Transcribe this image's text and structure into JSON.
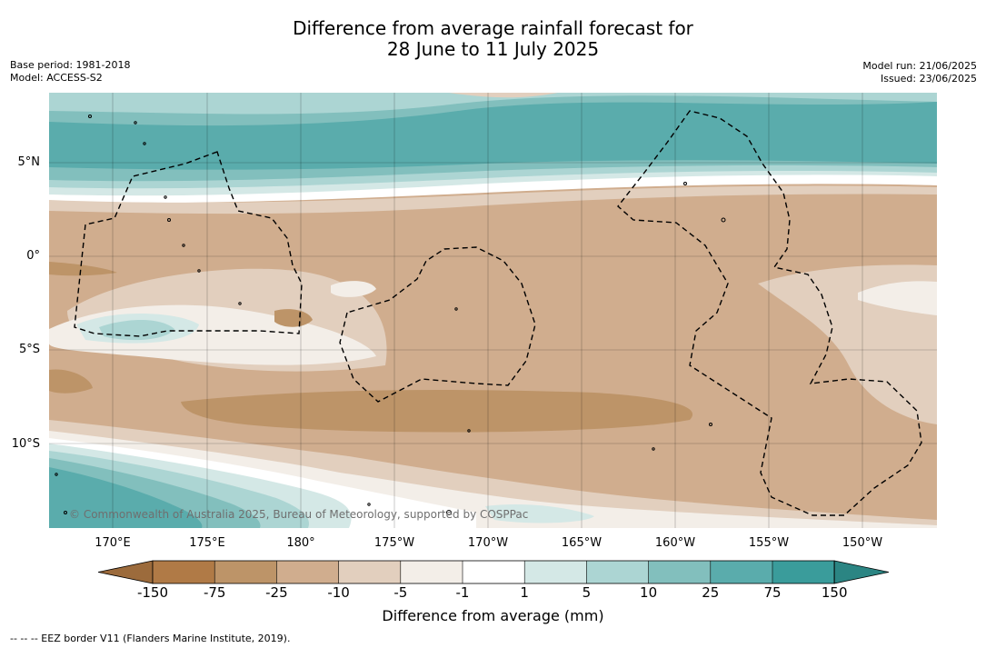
{
  "title": {
    "line1": "Difference from average rainfall forecast for",
    "line2": "28 June to 11 July 2025"
  },
  "meta": {
    "base_period": "Base period: 1981-2018",
    "model": "Model: ACCESS-S2",
    "model_run": "Model run: 21/06/2025",
    "issued": "Issued: 23/06/2025"
  },
  "map": {
    "lat_labels": [
      "5°N",
      "0°",
      "5°S",
      "10°S"
    ],
    "lon_labels": [
      "170°E",
      "175°E",
      "180°",
      "175°W",
      "170°W",
      "165°W",
      "160°W",
      "155°W",
      "150°W"
    ],
    "copyright": "© Commonwealth of Australia 2025, Bureau of Meteorology, supported by COSPPac",
    "legend_line": "--  --  -- EEZ border V11 (Flanders Marine Institute, 2019)."
  },
  "colorbar": {
    "title": "Difference from average (mm)",
    "ticks": [
      "-150",
      "-75",
      "-25",
      "-10",
      "-5",
      "-1",
      "1",
      "5",
      "10",
      "25",
      "75",
      "150"
    ],
    "colors": [
      "#9c6b3c",
      "#b07a46",
      "#bd9468",
      "#d0ad8e",
      "#e2cfbe",
      "#f3eee8",
      "#ffffff",
      "#d4e8e6",
      "#acd5d3",
      "#82bfbd",
      "#5aacac",
      "#3a9c9b",
      "#2b8583"
    ]
  }
}
